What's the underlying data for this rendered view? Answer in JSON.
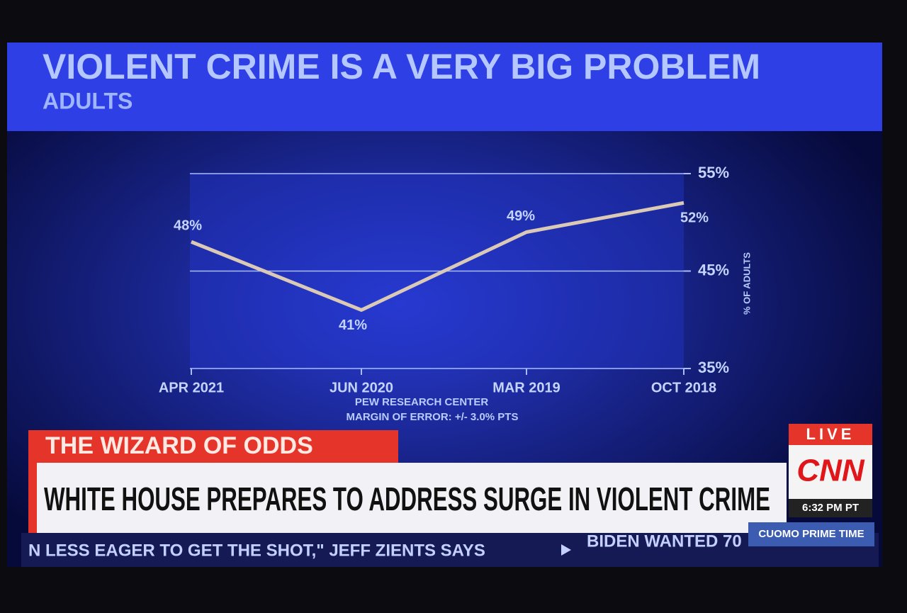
{
  "chart_data": {
    "type": "line",
    "title": "VIOLENT CRIME IS A VERY BIG PROBLEM",
    "subtitle": "ADULTS",
    "categories": [
      "APR 2021",
      "JUN 2020",
      "MAR 2019",
      "OCT 2018"
    ],
    "series": [
      {
        "name": "% OF ADULTS",
        "color": "#d9c9b6",
        "values": [
          48,
          41,
          49,
          52
        ],
        "value_labels": [
          "48%",
          "41%",
          "49%",
          "52%"
        ]
      }
    ],
    "ylabel": "% OF ADULTS",
    "ylim": [
      35,
      55
    ],
    "yticks": [
      {
        "value": 35,
        "label": "35%"
      },
      {
        "value": 45,
        "label": "45%"
      },
      {
        "value": 55,
        "label": "55%"
      }
    ],
    "grid": true,
    "source": "PEW RESEARCH CENTER",
    "note": "MARGIN OF ERROR: +/- 3.0% PTS"
  },
  "lower_third": {
    "show": "THE WIZARD OF ODDS",
    "headline": "WHITE HOUSE PREPARES TO ADDRESS SURGE IN VIOLENT CRIME",
    "live": "LIVE",
    "network": "CNN",
    "time": "6:32 PM PT",
    "program": "CUOMO PRIME TIME",
    "ticker": [
      "N LESS EAGER TO GET THE SHOT,\" JEFF ZIENTS SAYS",
      "BIDEN WANTED 70"
    ]
  }
}
